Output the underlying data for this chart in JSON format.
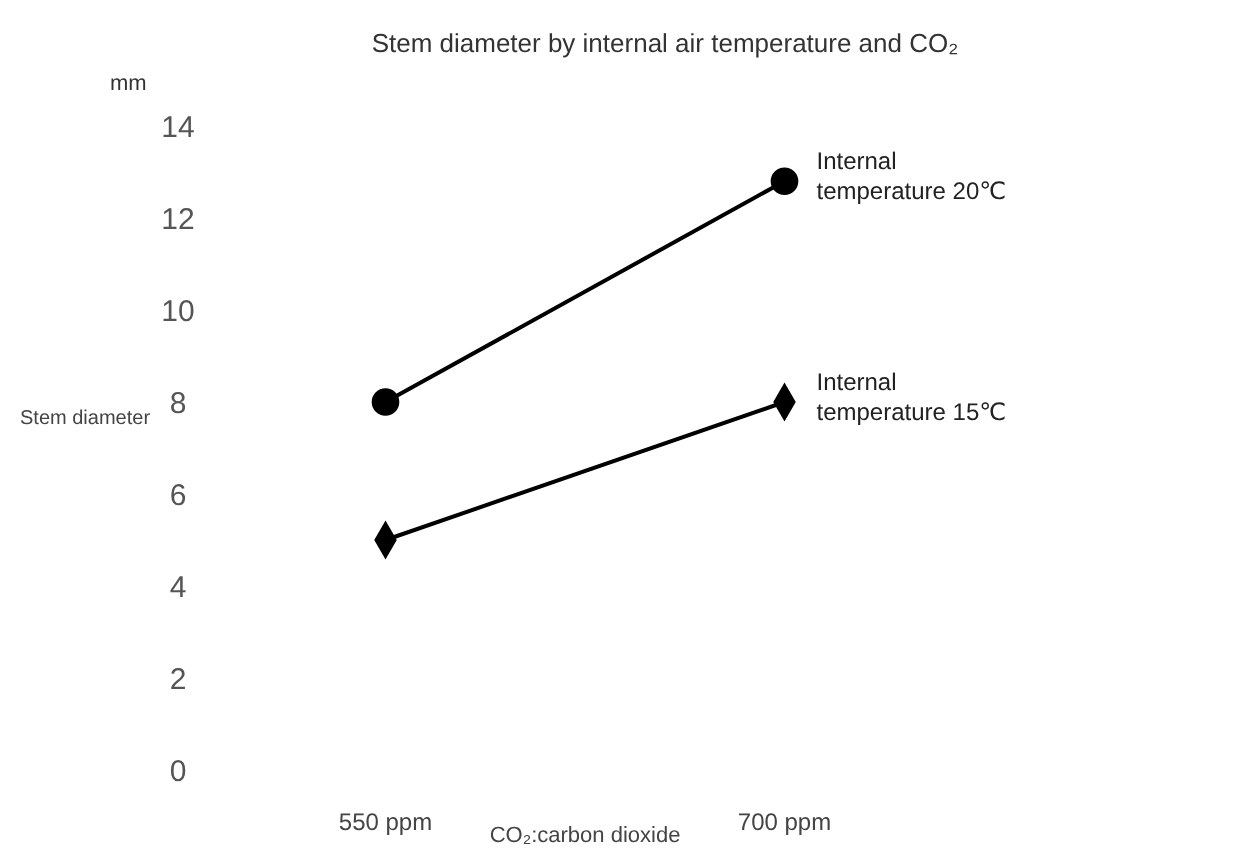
{
  "chart_data": {
    "type": "line",
    "title": "Stem diameter by internal air temperature and CO₂",
    "xlabel": "CO₂:carbon dioxide",
    "ylabel": "Stem diameter",
    "annotations": [
      "mm"
    ],
    "categories": [
      "550 ppm",
      "700 ppm"
    ],
    "ylim": [
      0,
      14
    ],
    "yticks": [
      0,
      2,
      4,
      6,
      8,
      10,
      12,
      14
    ],
    "grid": false,
    "series": [
      {
        "name": "Internal temperature 20℃",
        "color": "#000000",
        "marker": "circle",
        "values": [
          8,
          12.8
        ]
      },
      {
        "name": "Internal temperature 15℃",
        "color": "#000000",
        "marker": "diamond",
        "values": [
          5,
          8
        ]
      }
    ]
  }
}
